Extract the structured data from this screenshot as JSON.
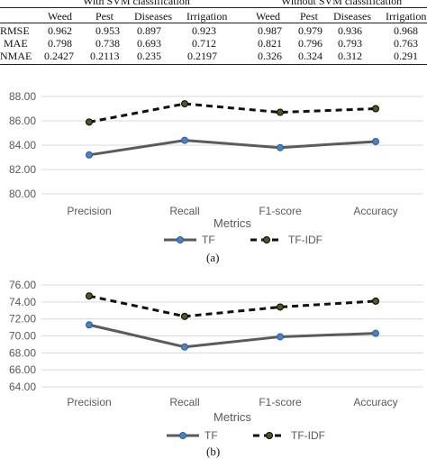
{
  "table": {
    "groups": [
      "With SVM classification",
      "Without SVM classification"
    ],
    "columns": [
      "Weed",
      "Pest",
      "Diseases",
      "Irrigation",
      "Weed",
      "Pest",
      "Diseases",
      "Irrigation"
    ],
    "rows": [
      {
        "label": "RMSE",
        "values": [
          "0.962",
          "0.953",
          "0.897",
          "0.923",
          "0.987",
          "0.979",
          "0.936",
          "0.968"
        ]
      },
      {
        "label": "MAE",
        "values": [
          "0.798",
          "0.738",
          "0.693",
          "0.712",
          "0.821",
          "0.796",
          "0.793",
          "0.763"
        ]
      },
      {
        "label": "NMAE",
        "values": [
          "0.2427",
          "0.2113",
          "0.235",
          "0.2197",
          "0.326",
          "0.324",
          "0.312",
          "0.291"
        ]
      }
    ]
  },
  "chart_data": [
    {
      "type": "line",
      "caption": "(a)",
      "xlabel": "Metrics",
      "ylabel": "",
      "categories": [
        "Precision",
        "Recall",
        "F1-score",
        "Accuracy"
      ],
      "ylim": [
        80,
        88
      ],
      "yticks": [
        "80.00",
        "82.00",
        "84.00",
        "86.00",
        "88.00"
      ],
      "grid": true,
      "legend_position": "bottom",
      "series": [
        {
          "name": "TF",
          "values": [
            83.2,
            84.4,
            83.8,
            84.3
          ],
          "color": "#5b5b5b",
          "marker_color": "#4a80c4",
          "dashed": false
        },
        {
          "name": "TF-IDF",
          "values": [
            85.9,
            87.4,
            86.7,
            87.0
          ],
          "color": "#111111",
          "marker_color": "#55551e",
          "dashed": true
        }
      ]
    },
    {
      "type": "line",
      "caption": "(b)",
      "xlabel": "Metrics",
      "ylabel": "",
      "categories": [
        "Precision",
        "Recall",
        "F1-score",
        "Accuracy"
      ],
      "ylim": [
        64,
        76
      ],
      "yticks": [
        "64.00",
        "66.00",
        "68.00",
        "70.00",
        "72.00",
        "74.00",
        "76.00"
      ],
      "grid": true,
      "legend_position": "bottom",
      "series": [
        {
          "name": "TF",
          "values": [
            71.3,
            68.7,
            69.9,
            70.3
          ],
          "color": "#5b5b5b",
          "marker_color": "#4a80c4",
          "dashed": false
        },
        {
          "name": "TF-IDF",
          "values": [
            74.7,
            72.3,
            73.4,
            74.1
          ],
          "color": "#111111",
          "marker_color": "#55551e",
          "dashed": true
        }
      ]
    }
  ]
}
